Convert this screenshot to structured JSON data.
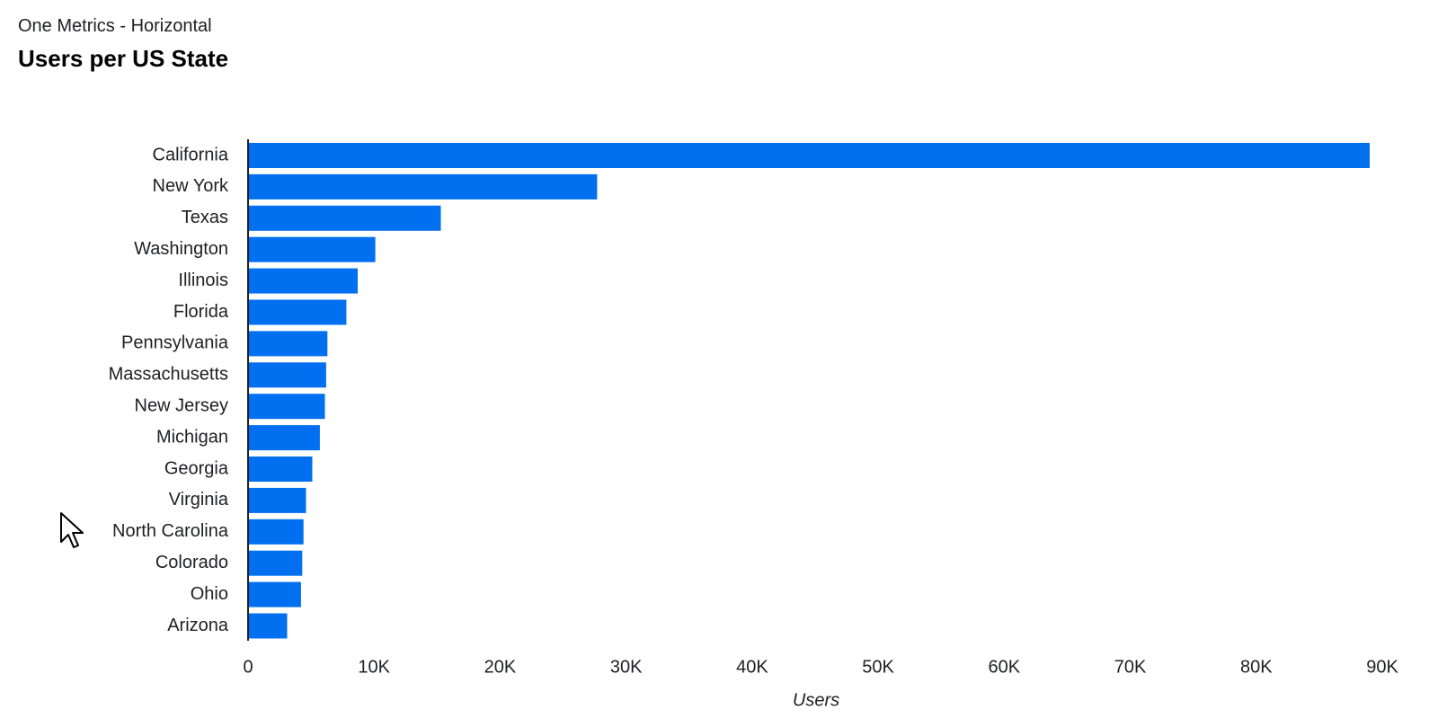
{
  "header": {
    "subtitle": "One Metrics - Horizontal",
    "title": "Users per US State"
  },
  "colors": {
    "bar": "#0070f0",
    "axis": "#202124",
    "text": "#202124"
  },
  "chart_data": {
    "type": "bar",
    "orientation": "horizontal",
    "categories": [
      "California",
      "New York",
      "Texas",
      "Washington",
      "Illinois",
      "Florida",
      "Pennsylvania",
      "Massachusetts",
      "New Jersey",
      "Michigan",
      "Georgia",
      "Virginia",
      "North Carolina",
      "Colorado",
      "Ohio",
      "Arizona"
    ],
    "values": [
      89000,
      27700,
      15300,
      10100,
      8700,
      7800,
      6300,
      6200,
      6100,
      5700,
      5100,
      4600,
      4400,
      4300,
      4200,
      3100
    ],
    "xlabel": "Users",
    "ylabel": "",
    "xlim": [
      0,
      90000
    ],
    "xticks": [
      0,
      10000,
      20000,
      30000,
      40000,
      50000,
      60000,
      70000,
      80000,
      90000
    ],
    "xtick_labels": [
      "0",
      "10K",
      "20K",
      "30K",
      "40K",
      "50K",
      "60K",
      "70K",
      "80K",
      "90K"
    ],
    "grid": false,
    "legend": "none"
  }
}
